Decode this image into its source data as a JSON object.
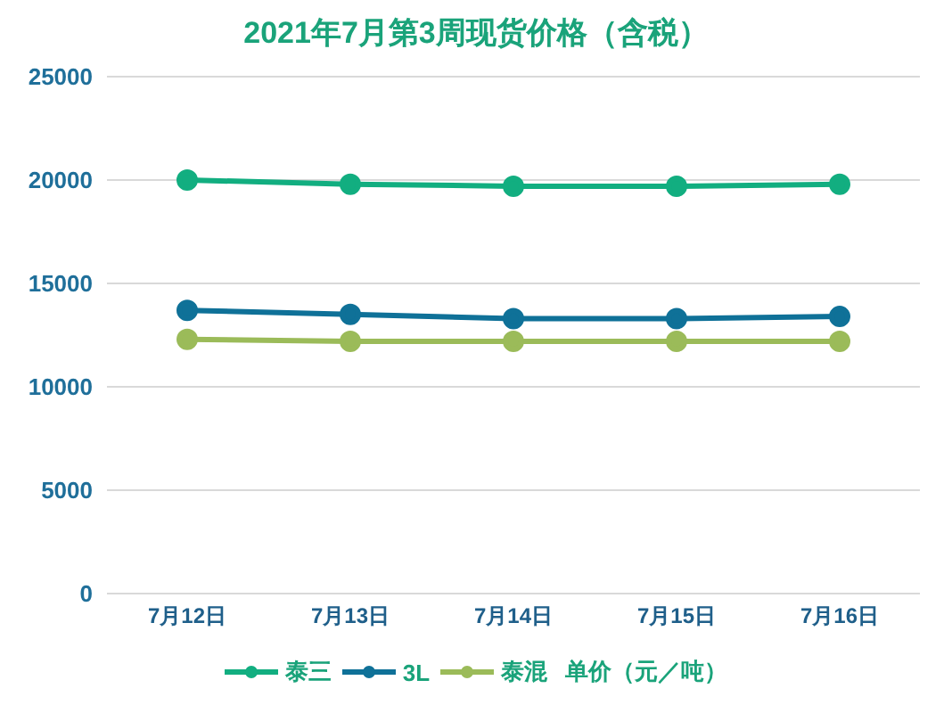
{
  "chart_data": {
    "type": "line",
    "title": "2021年7月第3周现货价格（含税）",
    "annotations": [
      "单价（元／吨）"
    ],
    "categories": [
      "7月12日",
      "7月13日",
      "7月14日",
      "7月15日",
      "7月16日"
    ],
    "series": [
      {
        "name": "泰三",
        "color": "#12ae80",
        "values": [
          20000,
          19800,
          19700,
          19700,
          19800
        ]
      },
      {
        "name": "3L",
        "color": "#0f7198",
        "values": [
          13700,
          13500,
          13300,
          13300,
          13400
        ]
      },
      {
        "name": "泰混",
        "color": "#9bbb59",
        "values": [
          12300,
          12200,
          12200,
          12200,
          12200
        ]
      }
    ],
    "ylim": [
      0,
      25000
    ],
    "yticks": [
      0,
      5000,
      10000,
      15000,
      20000,
      25000
    ],
    "grid": "y",
    "legend": "bottom",
    "marker": "circle",
    "line_style": "solid"
  }
}
